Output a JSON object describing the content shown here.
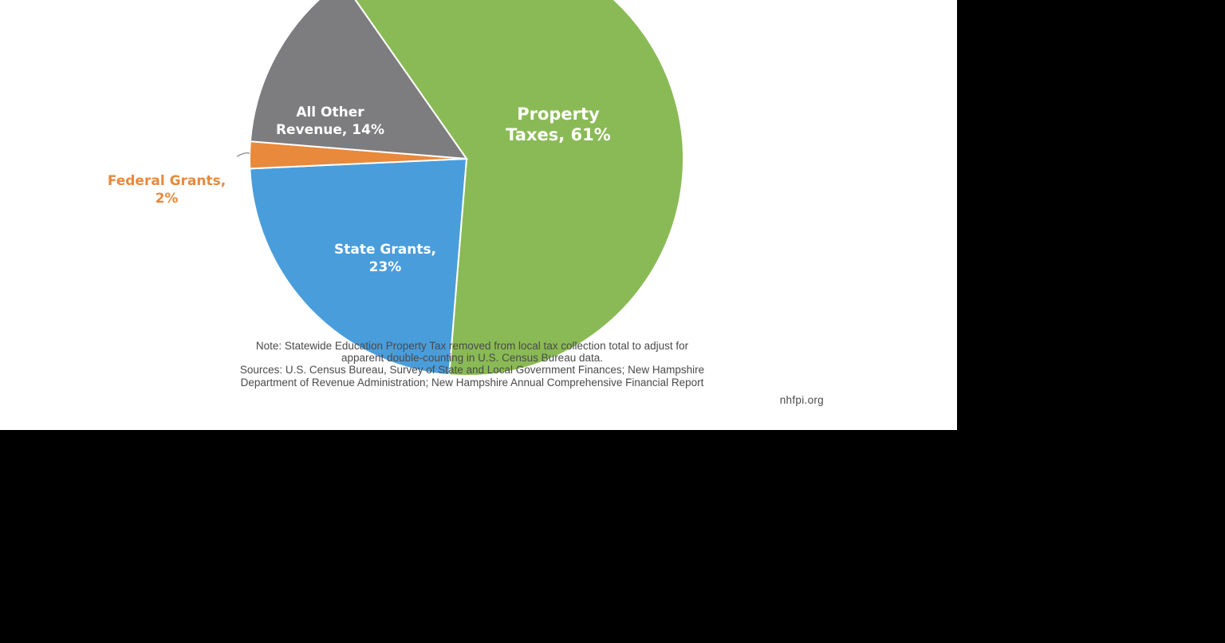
{
  "chart_data": {
    "type": "pie",
    "colors": {
      "property_taxes": "#8aba55",
      "state_grants": "#4a9ddb",
      "federal_grants": "#e8893c",
      "all_other_revenue": "#7d7d7f",
      "federal_label": "#e8893c",
      "slice_label": "#ffffff",
      "background": "#ffffff",
      "border": "#ffffff"
    },
    "slices": [
      {
        "key": "property_taxes",
        "value": 61,
        "label_lines": [
          "Property",
          "Taxes, 61%"
        ]
      },
      {
        "key": "state_grants",
        "value": 23,
        "label_lines": [
          "State Grants,",
          "23%"
        ]
      },
      {
        "key": "federal_grants",
        "value": 2,
        "label_lines": [
          "Federal Grants,",
          "2%"
        ]
      },
      {
        "key": "all_other_revenue",
        "value": 14,
        "label_lines": [
          "All Other",
          "Revenue, 14%"
        ]
      }
    ]
  },
  "footer": {
    "note_line1": "Note: Statewide Education Property Tax removed from local tax collection total to adjust for",
    "note_line2": "apparent double-counting in U.S. Census Bureau data.",
    "sources_line1": "Sources: U.S. Census Bureau, Survey of State and Local Government Finances; New Hampshire",
    "sources_line2": "Department of Revenue Administration; New Hampshire Annual Comprehensive Financial Report",
    "site": "nhfpi.org"
  }
}
